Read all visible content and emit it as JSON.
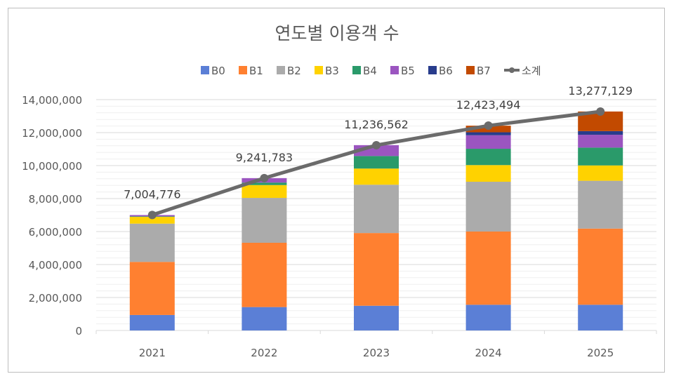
{
  "chart_data": {
    "type": "stacked-bar-with-line",
    "title": "연도별 이용객 수",
    "categories": [
      "2021",
      "2022",
      "2023",
      "2024",
      "2025"
    ],
    "ylim": [
      0,
      14000000
    ],
    "ytick_step": 2000000,
    "ytick_labels": [
      "0",
      "2,000,000",
      "4,000,000",
      "6,000,000",
      "8,000,000",
      "10,000,000",
      "12,000,000",
      "14,000,000"
    ],
    "grid": true,
    "legend_position": "top",
    "series": [
      {
        "name": "B0",
        "color": "#5B7FD6",
        "values": [
          940000,
          1420000,
          1500000,
          1560000,
          1560000
        ]
      },
      {
        "name": "B1",
        "color": "#FF8030",
        "values": [
          3220000,
          3900000,
          4410000,
          4440000,
          4620000
        ]
      },
      {
        "name": "B2",
        "color": "#ABABAB",
        "values": [
          2320000,
          2720000,
          2930000,
          3020000,
          2900000
        ]
      },
      {
        "name": "B3",
        "color": "#FFD200",
        "values": [
          410000,
          780000,
          980000,
          1010000,
          930000
        ]
      },
      {
        "name": "B4",
        "color": "#2A9A6A",
        "values": [
          30000,
          150000,
          760000,
          990000,
          1080000
        ]
      },
      {
        "name": "B5",
        "color": "#9B55C0",
        "values": [
          80000,
          270000,
          660000,
          820000,
          780000
        ]
      },
      {
        "name": "B6",
        "color": "#283C8C",
        "values": [
          0,
          0,
          0,
          180000,
          220000
        ]
      },
      {
        "name": "B7",
        "color": "#C24A00",
        "values": [
          0,
          0,
          0,
          400000,
          1190000
        ]
      }
    ],
    "line": {
      "name": "소계",
      "color": "#6B6B6B",
      "values": [
        7004776,
        9241783,
        11236562,
        12423494,
        13277129
      ],
      "labels": [
        "7,004,776",
        "9,241,783",
        "11,236,562",
        "12,423,494",
        "13,277,129"
      ]
    }
  }
}
